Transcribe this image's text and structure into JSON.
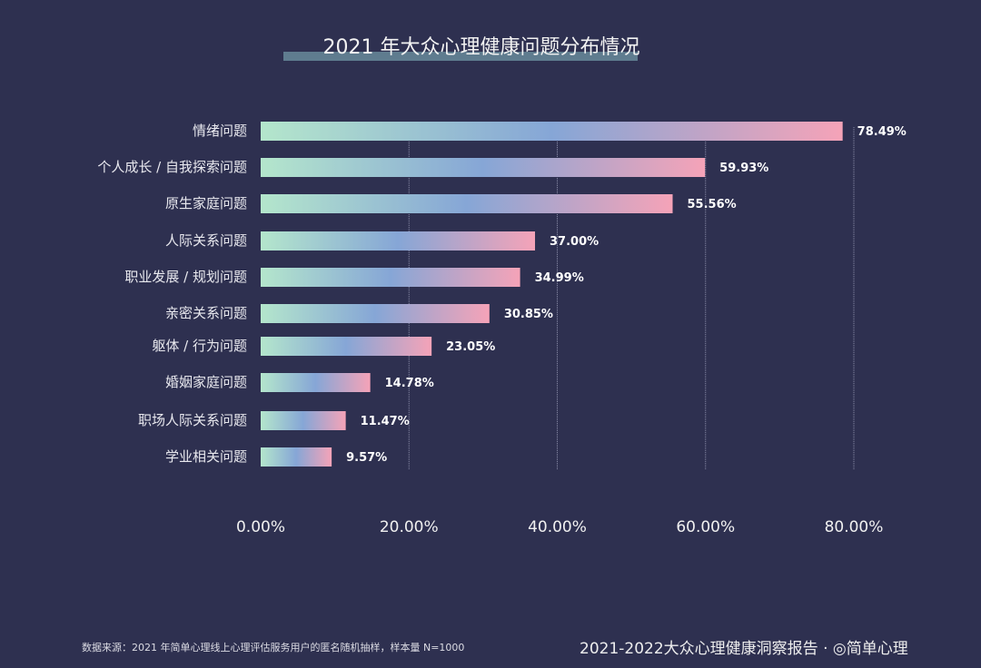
{
  "chart_data": {
    "type": "bar",
    "orientation": "horizontal",
    "title": "2021 年大众心理健康问题分布情况",
    "categories": [
      "情绪问题",
      "个人成长 / 自我探索问题",
      "原生家庭问题",
      "人际关系问题",
      "职业发展 / 规划问题",
      "亲密关系问题",
      "躯体 / 行为问题",
      "婚姻家庭问题",
      "职场人际关系问题",
      "学业相关问题"
    ],
    "values": [
      78.49,
      59.93,
      55.56,
      37.0,
      34.99,
      30.85,
      23.05,
      14.78,
      11.47,
      9.57
    ],
    "data_labels": [
      "78.49%",
      "59.93%",
      "55.56%",
      "37.00%",
      "34.99%",
      "30.85%",
      "23.05%",
      "14.78%",
      "11.47%",
      "9.57%"
    ],
    "xlim": [
      0,
      80
    ],
    "x_ticks": [
      0,
      20,
      40,
      60,
      80
    ],
    "x_tick_labels": [
      "0.00%",
      "20.00%",
      "40.00%",
      "60.00%",
      "80.00%"
    ],
    "grid": "vertical",
    "gradient_colors": [
      "#b4e6cc",
      "#86a6d6",
      "#f5a3b8"
    ]
  },
  "footer": {
    "source": "数据来源：2021 年简单心理线上心理评估服务用户的匿名随机抽样，样本量 N=1000",
    "report": "2021-2022大众心理健康洞察报告 · ◎简单心理"
  },
  "colors": {
    "background": "#2e3050",
    "title_underline": "#5f7c8f"
  }
}
